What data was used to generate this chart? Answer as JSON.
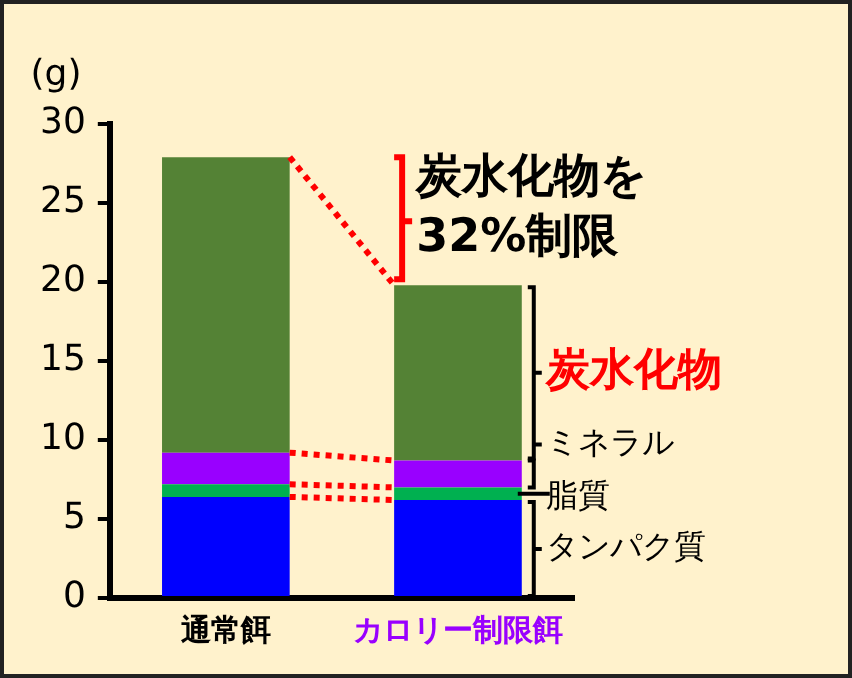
{
  "chart_data": {
    "type": "bar",
    "stacked": true,
    "ylabel": "(g)",
    "categories": [
      "通常餌",
      "カロリー制限餌"
    ],
    "series": [
      {
        "name": "タンパク質",
        "color": "#0000ff",
        "values": [
          6.4,
          6.2
        ]
      },
      {
        "name": "脂質",
        "color": "#00b050",
        "values": [
          0.8,
          0.8
        ]
      },
      {
        "name": "ミネラル",
        "color": "#9900ff",
        "values": [
          2.0,
          1.7
        ]
      },
      {
        "name": "炭水化物",
        "color": "#548235",
        "values": [
          18.7,
          11.1
        ]
      }
    ],
    "ylim": [
      0,
      30
    ],
    "yticks": [
      0,
      5,
      10,
      15,
      20,
      25,
      30
    ],
    "grid": false,
    "legend": false,
    "annotations": [
      {
        "text": "炭水化物を\n32%制限",
        "x": "カロリー制限餌",
        "y": 19.8
      }
    ]
  }
}
